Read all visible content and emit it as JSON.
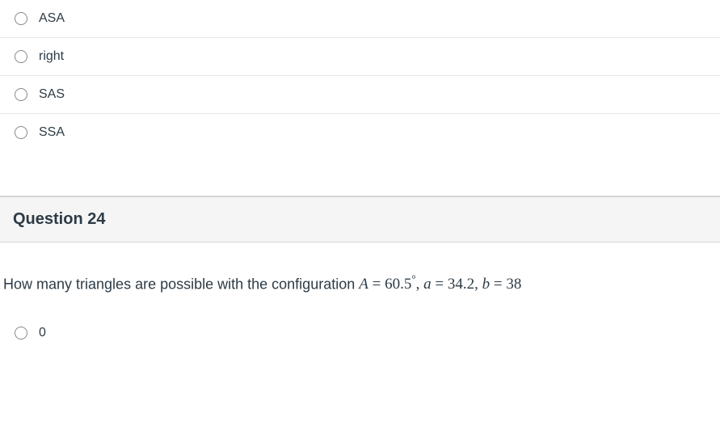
{
  "q23": {
    "options": [
      {
        "label": "ASA"
      },
      {
        "label": "right"
      },
      {
        "label": "SAS"
      },
      {
        "label": "SSA"
      }
    ]
  },
  "q24": {
    "header": "Question 24",
    "prompt_prefix": "How many triangles are possible with the configuration ",
    "A_var": "A",
    "eq": " = ",
    "A_val": "60.5",
    "deg": "°",
    "sep1": ",  ",
    "a_var": "a",
    "a_val": "34.2",
    "sep2": ",  ",
    "b_var": "b",
    "b_val": "38",
    "options": [
      {
        "label": "0"
      }
    ]
  },
  "style": {
    "text_color": "#2d3b45",
    "divider_color": "#e6e6e6",
    "header_bg": "#f5f5f5",
    "header_border": "#d4d4d4",
    "radio_border": "#888888",
    "font_size_option": 16,
    "font_size_header": 20,
    "font_size_body": 18
  }
}
